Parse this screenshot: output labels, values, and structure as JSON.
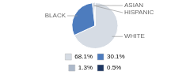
{
  "chart_data": {
    "type": "pie",
    "categories": [
      "WHITE",
      "BLACK",
      "HISPANIC",
      "ASIAN"
    ],
    "values": [
      68.1,
      30.1,
      1.3,
      0.5
    ],
    "value_labels": [
      "68.1%",
      "30.1%",
      "1.3%",
      "0.5%"
    ],
    "colors": [
      "#d6dce4",
      "#4d7cbe",
      "#adb9ca",
      "#1f3864"
    ],
    "legend": "bottom"
  }
}
